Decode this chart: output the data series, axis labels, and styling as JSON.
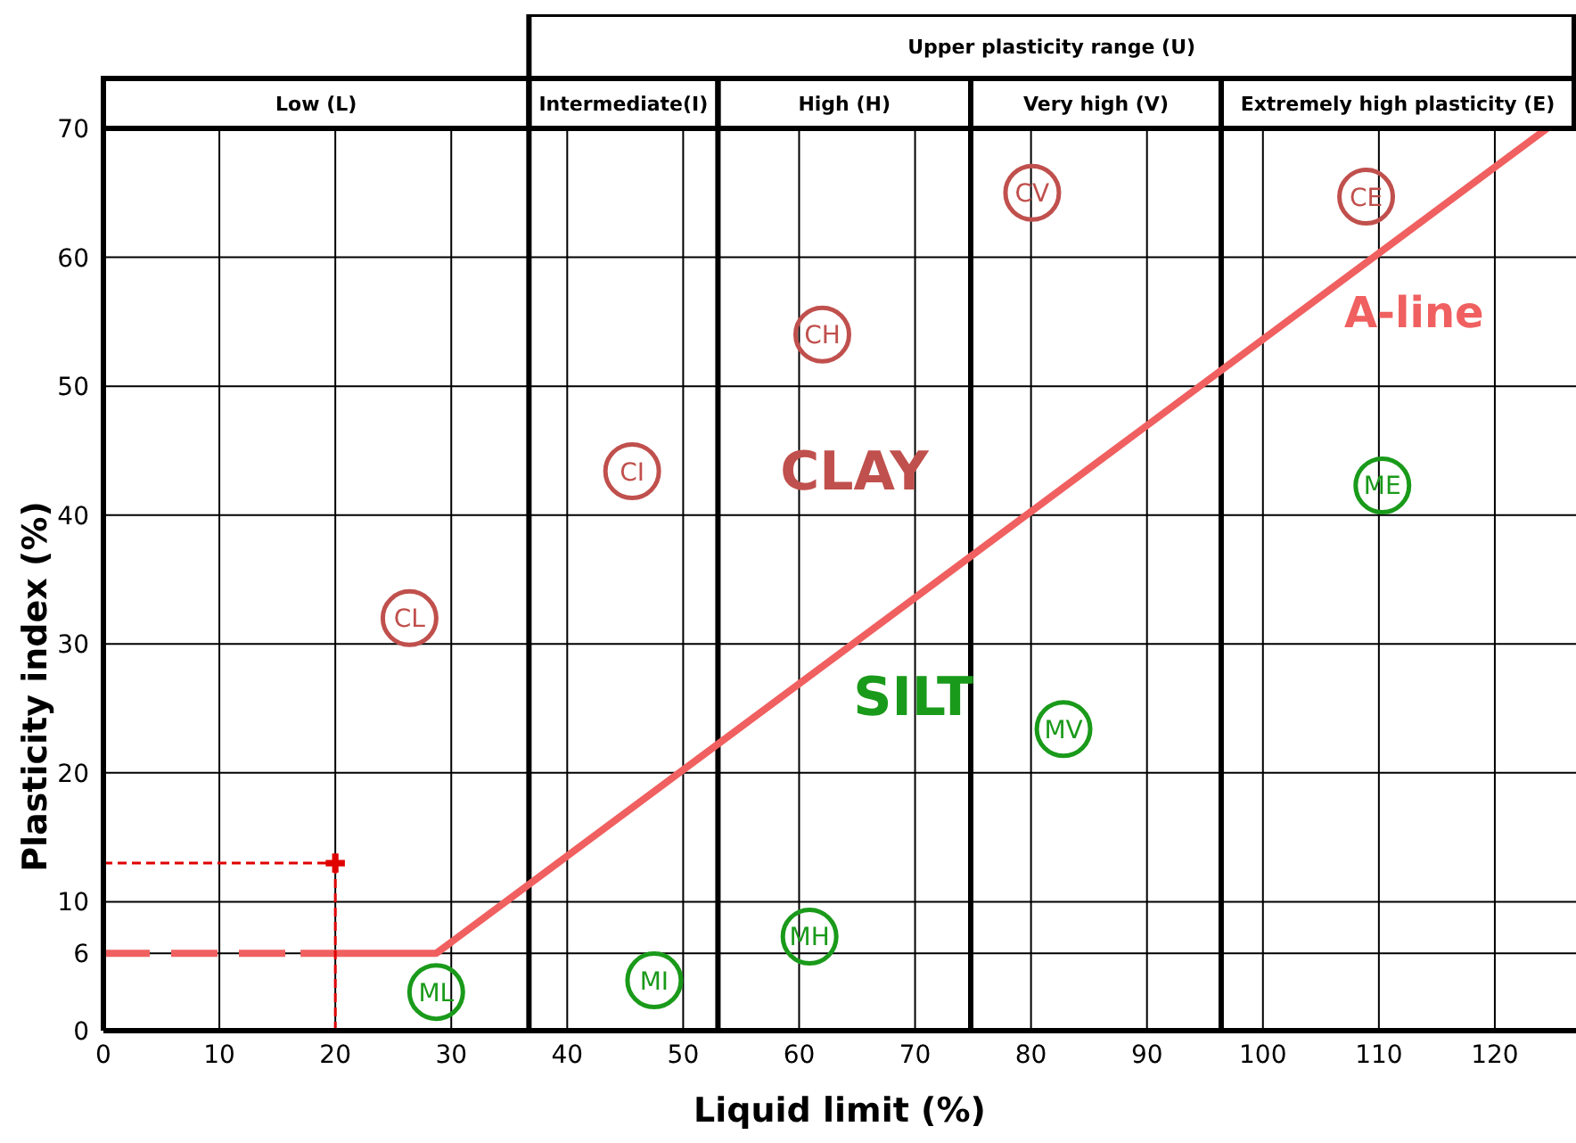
{
  "chart_data": {
    "type": "line",
    "xlabel": "Liquid limit (%)",
    "ylabel": "Plasticity index (%)",
    "xlim": [
      0,
      127
    ],
    "xticks": [
      0,
      10,
      20,
      30,
      40,
      50,
      60,
      70,
      80,
      90,
      100,
      110,
      120
    ],
    "ylim": [
      0,
      70
    ],
    "yticks": [
      0,
      6,
      10,
      20,
      30,
      40,
      50,
      60,
      70
    ],
    "grid": true,
    "ref_lines": [
      {
        "axis": "x",
        "value": 36.7
      },
      {
        "axis": "x",
        "value": 53
      },
      {
        "axis": "x",
        "value": 74.8
      },
      {
        "axis": "x",
        "value": 96.4
      }
    ],
    "series": [
      {
        "type": "scatter",
        "marker": "circle",
        "color": "#c0504d",
        "x": [
          80.1,
          108.9,
          62,
          45.6,
          26.4
        ],
        "values": [
          65,
          64.7,
          54,
          43.4,
          32
        ],
        "value_labels": [
          "CV",
          "CE",
          "CH",
          "CI",
          "CL"
        ]
      },
      {
        "type": "scatter",
        "marker": "circle",
        "color": "#1a9a1a",
        "x": [
          82.8,
          110.3,
          60.9,
          47.5,
          28.7
        ],
        "values": [
          23.4,
          42.3,
          7.3,
          3.9,
          3
        ],
        "value_labels": [
          "MV",
          "ME",
          "MH",
          "MI",
          "ML"
        ]
      },
      {
        "line_style": "solid",
        "color": "#f06060",
        "x": [
          17,
          28.7,
          124.5
        ],
        "values": [
          6,
          6,
          70
        ]
      },
      {
        "line_style": "dashed",
        "color": "#f06060",
        "x": [
          0,
          17
        ],
        "values": [
          6,
          6
        ]
      },
      {
        "line_style": "dotted",
        "color": "#e00000",
        "x": [
          0,
          20
        ],
        "values": [
          13,
          13
        ]
      },
      {
        "line_style": "dotted",
        "color": "#e00000",
        "x": [
          20,
          20
        ],
        "values": [
          0,
          13
        ]
      },
      {
        "type": "scatter",
        "marker": "cross",
        "color": "#e00000",
        "x": [
          20
        ],
        "values": [
          13
        ]
      }
    ],
    "annotations": [
      "CLAY",
      "SILT",
      "A-line",
      "Low (L)",
      "Intermediate(I)",
      "High (H)",
      "Very high (V)",
      "Extremely high plasticity (E)",
      "Upper plasticity range (U)"
    ]
  }
}
